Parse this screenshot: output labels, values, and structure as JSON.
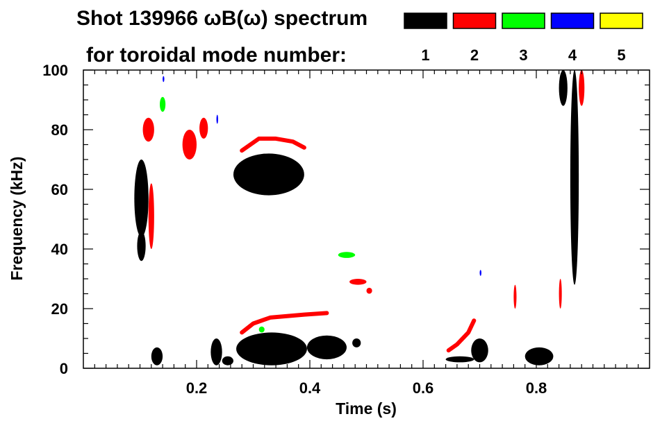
{
  "chart_data": {
    "type": "heatmap",
    "title": "Shot 139966 ωB(ω) spectrum",
    "subtitle": "for toroidal mode number:",
    "xlabel": "Time (s)",
    "ylabel": "Frequency (kHz)",
    "xlim": [
      0.0,
      1.0
    ],
    "ylim": [
      0,
      100
    ],
    "x_ticks": [
      {
        "value": 0.2,
        "label": "0.2"
      },
      {
        "value": 0.4,
        "label": "0.4"
      },
      {
        "value": 0.6,
        "label": "0.6"
      },
      {
        "value": 0.8,
        "label": "0.8"
      }
    ],
    "y_ticks": [
      {
        "value": 0,
        "label": "0"
      },
      {
        "value": 20,
        "label": "20"
      },
      {
        "value": 40,
        "label": "40"
      },
      {
        "value": 60,
        "label": "60"
      },
      {
        "value": 80,
        "label": "80"
      },
      {
        "value": 100,
        "label": "100"
      }
    ],
    "legend": [
      {
        "n": "1",
        "color": "#000000"
      },
      {
        "n": "2",
        "color": "#ff0000"
      },
      {
        "n": "3",
        "color": "#00ff00"
      },
      {
        "n": "4",
        "color": "#0000ff"
      },
      {
        "n": "5",
        "color": "#ffff00"
      }
    ],
    "series": [
      {
        "mode": "1",
        "color": "#000000",
        "blobs": [
          {
            "t0": 0.09,
            "t1": 0.115,
            "f0": 44,
            "f1": 70
          },
          {
            "t0": 0.095,
            "t1": 0.11,
            "f0": 36,
            "f1": 46
          },
          {
            "t0": 0.12,
            "t1": 0.14,
            "f0": 1,
            "f1": 7
          },
          {
            "t0": 0.225,
            "t1": 0.245,
            "f0": 1,
            "f1": 10
          },
          {
            "t0": 0.245,
            "t1": 0.265,
            "f0": 1,
            "f1": 4
          },
          {
            "t0": 0.27,
            "t1": 0.395,
            "f0": 1,
            "f1": 12
          },
          {
            "t0": 0.395,
            "t1": 0.465,
            "f0": 3,
            "f1": 11
          },
          {
            "t0": 0.475,
            "t1": 0.49,
            "f0": 7,
            "f1": 10
          },
          {
            "t0": 0.265,
            "t1": 0.39,
            "f0": 58,
            "f1": 72
          },
          {
            "t0": 0.64,
            "t1": 0.69,
            "f0": 2,
            "f1": 4
          },
          {
            "t0": 0.685,
            "t1": 0.715,
            "f0": 2,
            "f1": 10
          },
          {
            "t0": 0.78,
            "t1": 0.83,
            "f0": 1,
            "f1": 7
          },
          {
            "t0": 0.86,
            "t1": 0.875,
            "f0": 28,
            "f1": 100
          },
          {
            "t0": 0.84,
            "t1": 0.855,
            "f0": 88,
            "f1": 100
          }
        ]
      },
      {
        "mode": "2",
        "color": "#ff0000",
        "blobs": [
          {
            "t0": 0.105,
            "t1": 0.125,
            "f0": 76,
            "f1": 84
          },
          {
            "t0": 0.175,
            "t1": 0.2,
            "f0": 70,
            "f1": 80
          },
          {
            "t0": 0.205,
            "t1": 0.22,
            "f0": 77,
            "f1": 84
          },
          {
            "t0": 0.115,
            "t1": 0.125,
            "f0": 40,
            "f1": 62
          },
          {
            "t0": 0.875,
            "t1": 0.885,
            "f0": 88,
            "f1": 100
          },
          {
            "t0": 0.47,
            "t1": 0.5,
            "f0": 28,
            "f1": 30
          },
          {
            "t0": 0.5,
            "t1": 0.51,
            "f0": 25,
            "f1": 27
          },
          {
            "t0": 0.76,
            "t1": 0.765,
            "f0": 20,
            "f1": 28
          },
          {
            "t0": 0.84,
            "t1": 0.845,
            "f0": 20,
            "f1": 30
          }
        ],
        "lines": [
          [
            [
              0.28,
              73
            ],
            [
              0.31,
              77
            ],
            [
              0.34,
              77
            ],
            [
              0.37,
              76
            ],
            [
              0.39,
              74
            ]
          ],
          [
            [
              0.28,
              12
            ],
            [
              0.3,
              15
            ],
            [
              0.33,
              17
            ],
            [
              0.36,
              17.5
            ],
            [
              0.39,
              18
            ],
            [
              0.43,
              18.5
            ]
          ],
          [
            [
              0.645,
              6
            ],
            [
              0.66,
              8
            ],
            [
              0.68,
              12
            ],
            [
              0.69,
              16
            ]
          ]
        ]
      },
      {
        "mode": "3",
        "color": "#00ff00",
        "blobs": [
          {
            "t0": 0.135,
            "t1": 0.145,
            "f0": 86,
            "f1": 91
          },
          {
            "t0": 0.45,
            "t1": 0.48,
            "f0": 37,
            "f1": 39
          },
          {
            "t0": 0.31,
            "t1": 0.32,
            "f0": 12,
            "f1": 14
          }
        ]
      },
      {
        "mode": "4",
        "color": "#0000ff",
        "blobs": [
          {
            "t0": 0.14,
            "t1": 0.143,
            "f0": 96,
            "f1": 98
          },
          {
            "t0": 0.235,
            "t1": 0.238,
            "f0": 82,
            "f1": 85
          },
          {
            "t0": 0.7,
            "t1": 0.703,
            "f0": 31,
            "f1": 33
          }
        ]
      },
      {
        "mode": "5",
        "color": "#ffff00",
        "blobs": []
      }
    ]
  }
}
